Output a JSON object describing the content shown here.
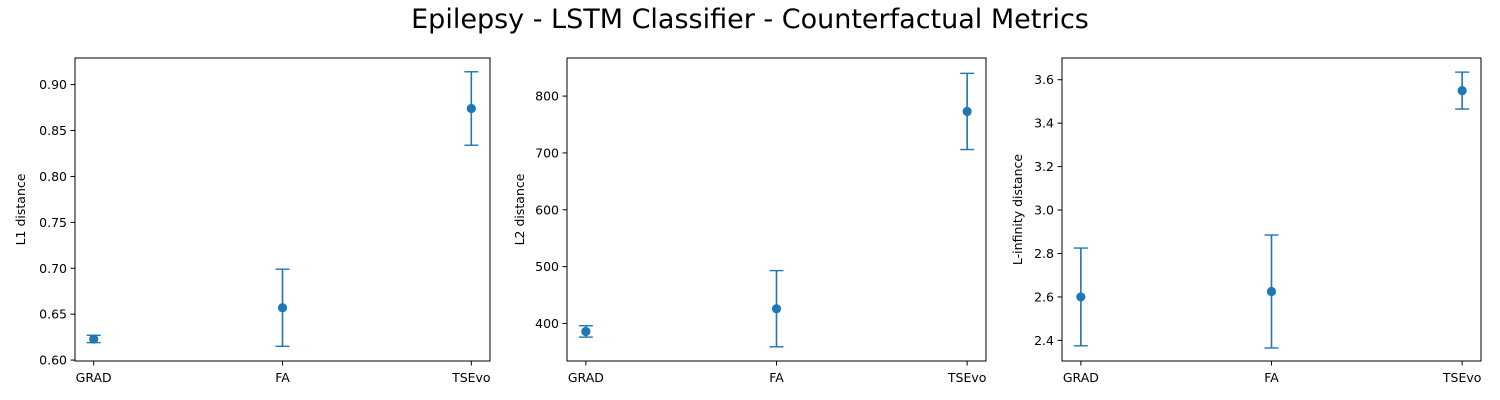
{
  "title": "Epilepsy - LSTM Classifier - Counterfactual Metrics",
  "colors": {
    "marker": "#1f77b4",
    "axes": "#000000"
  },
  "chart_data": [
    {
      "type": "errorbar",
      "categories": [
        "GRAD",
        "FA",
        "TSEvo"
      ],
      "values": [
        0.623,
        0.657,
        0.874
      ],
      "error": [
        0.004,
        0.042,
        0.04
      ],
      "ylabel": "L1 distance",
      "yticks": [
        0.6,
        0.65,
        0.7,
        0.75,
        0.8,
        0.85,
        0.9
      ],
      "ytick_labels": [
        "0.60",
        "0.65",
        "0.70",
        "0.75",
        "0.80",
        "0.85",
        "0.90"
      ],
      "ylim": [
        0.599,
        0.929
      ],
      "grid": false
    },
    {
      "type": "errorbar",
      "categories": [
        "GRAD",
        "FA",
        "TSEvo"
      ],
      "values": [
        386,
        426,
        773
      ],
      "error": [
        10,
        67,
        67
      ],
      "ylabel": "L2 distance",
      "yticks": [
        400,
        500,
        600,
        700,
        800
      ],
      "ytick_labels": [
        "400",
        "500",
        "600",
        "700",
        "800"
      ],
      "ylim": [
        334,
        867
      ],
      "grid": false
    },
    {
      "type": "errorbar",
      "categories": [
        "GRAD",
        "FA",
        "TSEvo"
      ],
      "values": [
        2.6,
        2.625,
        3.55
      ],
      "error": [
        0.225,
        0.26,
        0.085
      ],
      "ylabel": "L-infinity distance",
      "yticks": [
        2.4,
        2.6,
        2.8,
        3.0,
        3.2,
        3.4,
        3.6
      ],
      "ytick_labels": [
        "2.4",
        "2.6",
        "2.8",
        "3.0",
        "3.2",
        "3.4",
        "3.6"
      ],
      "ylim": [
        2.305,
        3.7
      ],
      "grid": false
    }
  ]
}
